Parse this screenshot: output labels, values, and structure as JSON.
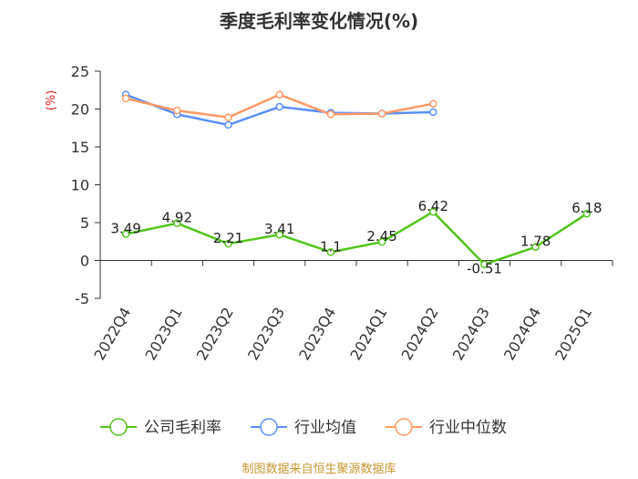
{
  "chart_data": {
    "type": "line",
    "title": "季度毛利率变化情况(%)",
    "y_unit": "(%)",
    "categories": [
      "2022Q4",
      "2023Q1",
      "2023Q2",
      "2023Q3",
      "2023Q4",
      "2024Q1",
      "2024Q2",
      "2024Q3",
      "2024Q4",
      "2025Q1"
    ],
    "ylim": [
      -5,
      25
    ],
    "yticks": [
      -5,
      0,
      5,
      10,
      15,
      20,
      25
    ],
    "grid": false,
    "legend_position": "bottom",
    "series": [
      {
        "name": "公司毛利率",
        "color": "#52c41a",
        "values": [
          3.49,
          4.92,
          2.21,
          3.41,
          1.1,
          2.45,
          6.42,
          -0.51,
          1.78,
          6.18
        ],
        "labels": [
          "3.49",
          "4.92",
          "2.21",
          "3.41",
          "1.1",
          "2.45",
          "6.42",
          "-0.51",
          "1.78",
          "6.18"
        ]
      },
      {
        "name": "行业均值",
        "color": "#5b8ff9",
        "values": [
          21.9,
          19.3,
          17.9,
          20.3,
          19.5,
          19.4,
          19.6,
          null,
          null,
          null
        ]
      },
      {
        "name": "行业中位数",
        "color": "#ff9966",
        "values": [
          21.4,
          19.8,
          18.9,
          21.9,
          19.3,
          19.4,
          20.7,
          null,
          null,
          null
        ]
      }
    ]
  },
  "source": "制图数据来自恒生聚源数据库"
}
